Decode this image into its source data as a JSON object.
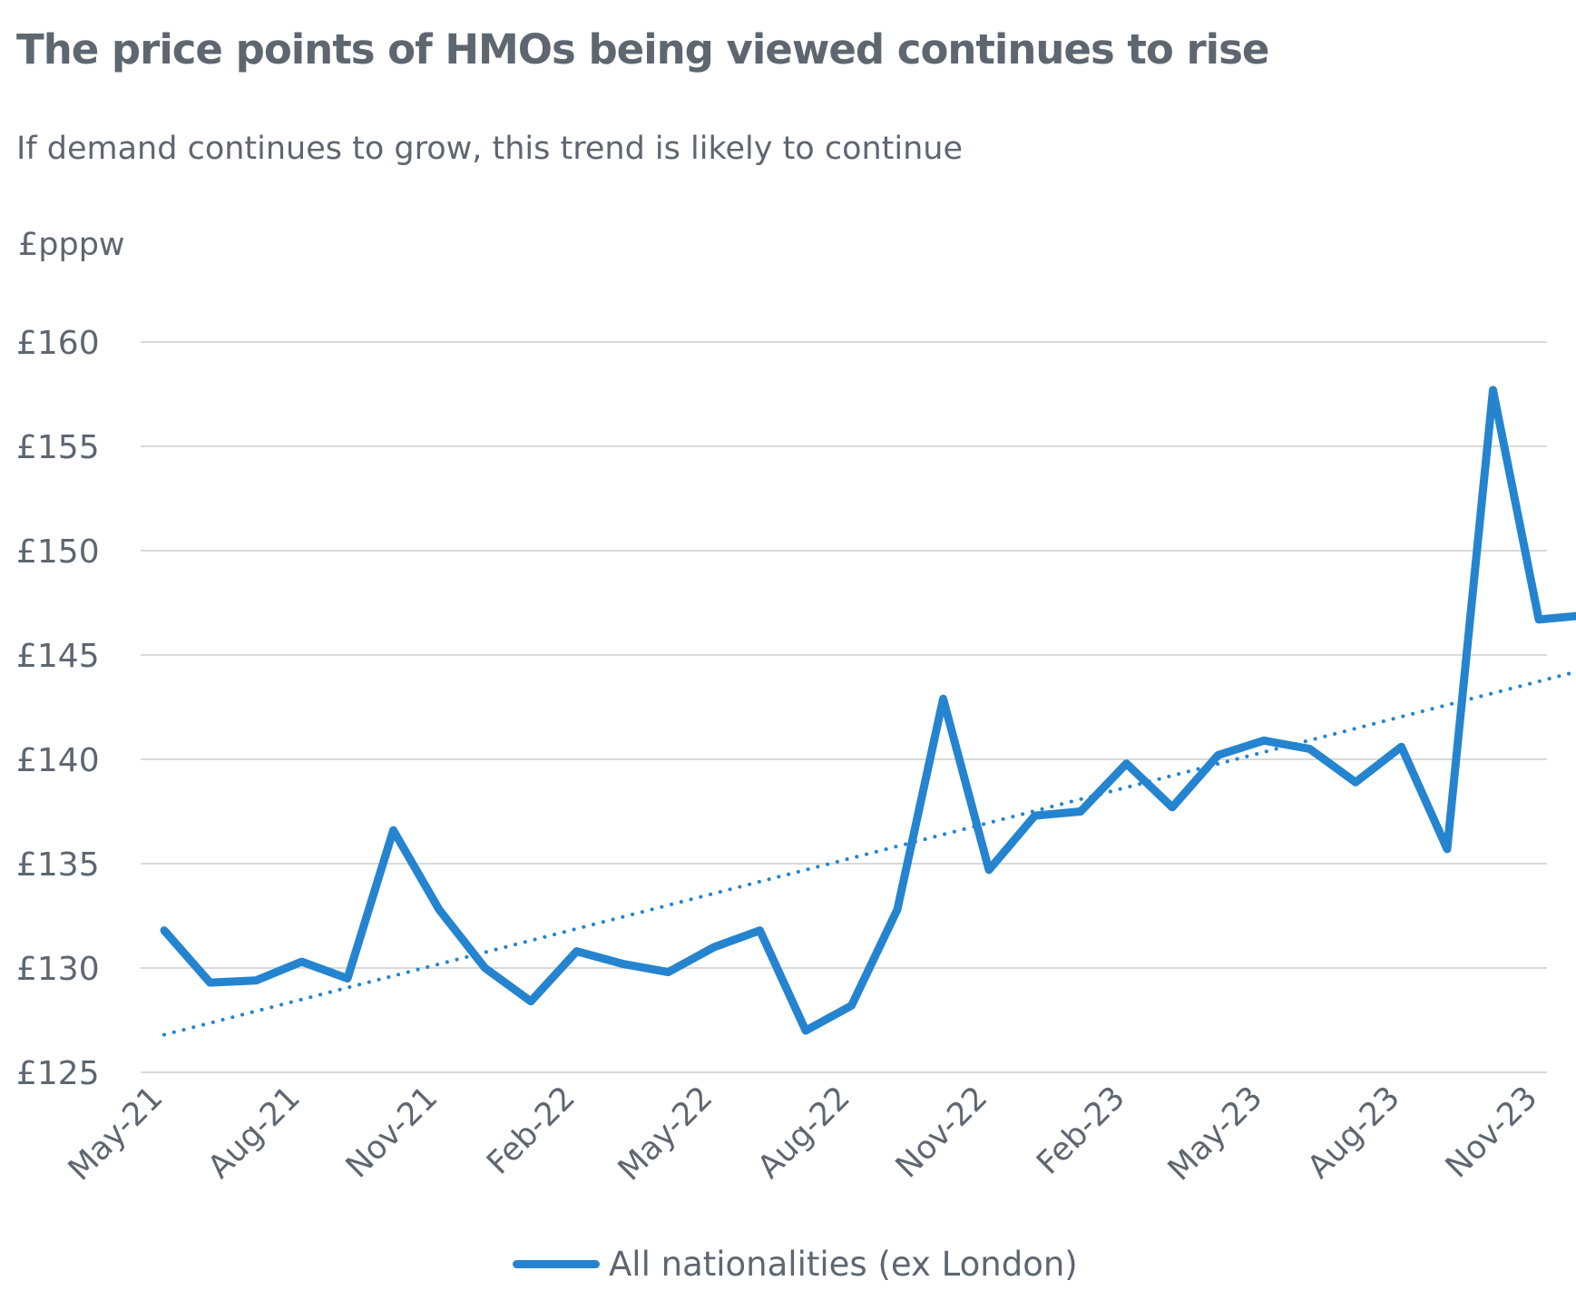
{
  "chart_data": {
    "type": "line",
    "title": "The price points of HMOs being viewed continues to rise",
    "subtitle": "If demand continues to grow, this trend is likely to continue",
    "ylabel": "£pppw",
    "xlabel": "",
    "ylim": [
      125,
      160
    ],
    "yticks": [
      125,
      130,
      135,
      140,
      145,
      150,
      155,
      160
    ],
    "ytick_labels": [
      "£125",
      "£130",
      "£135",
      "£140",
      "£145",
      "£150",
      "£155",
      "£160"
    ],
    "x": [
      "May-21",
      "Jun-21",
      "Jul-21",
      "Aug-21",
      "Sep-21",
      "Oct-21",
      "Nov-21",
      "Dec-21",
      "Jan-22",
      "Feb-22",
      "Mar-22",
      "Apr-22",
      "May-22",
      "Jun-22",
      "Jul-22",
      "Aug-22",
      "Sep-22",
      "Oct-22",
      "Nov-22",
      "Dec-22",
      "Jan-23",
      "Feb-23",
      "Mar-23",
      "Apr-23",
      "May-23",
      "Jun-23",
      "Jul-23",
      "Aug-23",
      "Sep-23",
      "Oct-23",
      "Nov-23",
      "Dec-23"
    ],
    "xtick_labels": [
      "May-21",
      "Aug-21",
      "Nov-21",
      "Feb-22",
      "May-22",
      "Aug-22",
      "Nov-22",
      "Feb-23",
      "May-23",
      "Aug-23",
      "Nov-23"
    ],
    "series": [
      {
        "name": "All nationalities (ex London)",
        "color": "#2584cf",
        "style": "solid",
        "values": [
          131.8,
          129.3,
          129.4,
          130.3,
          129.5,
          136.6,
          132.8,
          130.0,
          128.4,
          130.8,
          130.2,
          129.8,
          131.0,
          131.8,
          127.0,
          128.2,
          132.8,
          142.9,
          134.7,
          137.3,
          137.5,
          139.8,
          137.7,
          140.2,
          140.9,
          140.5,
          138.9,
          140.6,
          135.7,
          157.7,
          146.7,
          146.9
        ]
      },
      {
        "type": "trendline",
        "color": "#2584cf",
        "style": "dotted",
        "values_start_end": [
          126.8,
          144.3
        ]
      }
    ],
    "grid": true,
    "legend_position": "bottom"
  },
  "colors": {
    "text": "#5e6670",
    "grid": "#d9d9d9",
    "series": "#2584cf"
  }
}
